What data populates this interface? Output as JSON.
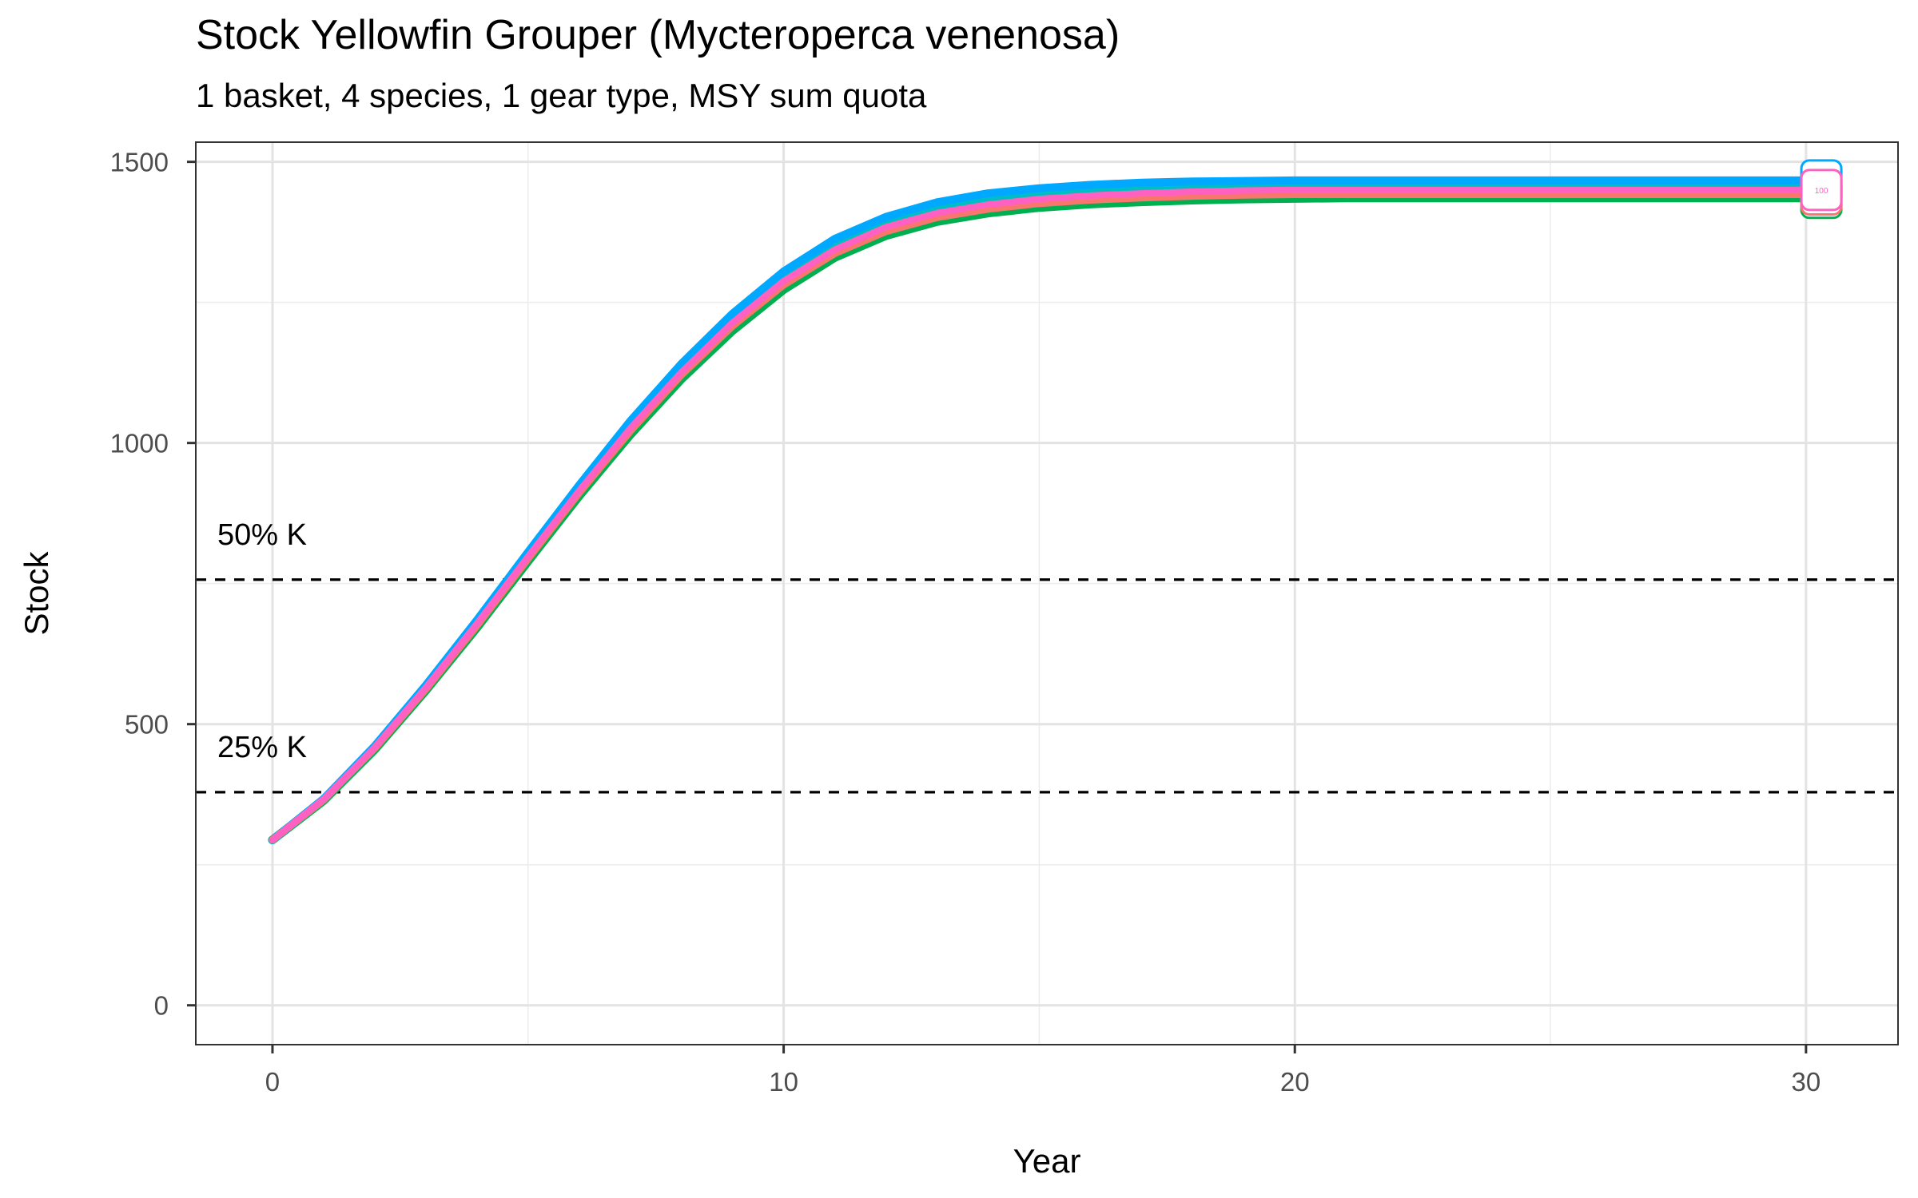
{
  "chart_data": {
    "type": "line",
    "title": "Stock Yellowfin Grouper (Mycteroperca venenosa)",
    "subtitle": "1 basket, 4 species, 1 gear type, MSY sum quota",
    "xlabel": "Year",
    "ylabel": "Stock",
    "xlim": [
      -1.5,
      31.8
    ],
    "ylim": [
      -70,
      1535
    ],
    "x_ticks": [
      0,
      10,
      20,
      30
    ],
    "x_tick_labels": [
      "0",
      "10",
      "20",
      "30"
    ],
    "y_ticks": [
      0,
      500,
      1000,
      1500
    ],
    "y_tick_labels": [
      "0",
      "500",
      "1000",
      "1500"
    ],
    "grid": true,
    "legend": "none",
    "end_label": "100",
    "reference_lines": [
      {
        "label": "50% K",
        "y": 757
      },
      {
        "label": "25% K",
        "y": 379
      }
    ],
    "x": [
      0,
      1,
      2,
      3,
      4,
      5,
      6,
      7,
      8,
      9,
      10,
      11,
      12,
      13,
      14,
      15,
      16,
      17,
      18,
      19,
      20,
      21,
      22,
      23,
      24,
      25,
      26,
      27,
      28,
      29,
      30
    ],
    "series": [
      {
        "color": "#00b050",
        "values": [
          294,
          364,
          455,
          560,
          672,
          790,
          906,
          1015,
          1114,
          1200,
          1273,
          1330,
          1369,
          1394,
          1409,
          1419,
          1425,
          1429,
          1432,
          1434,
          1435,
          1436,
          1436,
          1436,
          1436,
          1436,
          1436,
          1436,
          1436,
          1436,
          1436
        ]
      },
      {
        "color": "#00bfc4",
        "values": [
          294,
          366,
          459,
          566,
          681,
          801,
          919,
          1031,
          1132,
          1220,
          1293,
          1350,
          1390,
          1415,
          1430,
          1440,
          1446,
          1450,
          1453,
          1455,
          1456,
          1456,
          1456,
          1456,
          1456,
          1456,
          1456,
          1456,
          1456,
          1456,
          1456
        ]
      },
      {
        "color": "#00a9ff",
        "values": [
          294,
          367,
          461,
          569,
          685,
          806,
          925,
          1039,
          1141,
          1230,
          1305,
          1363,
          1402,
          1428,
          1444,
          1453,
          1459,
          1463,
          1465,
          1466,
          1467,
          1467,
          1467,
          1467,
          1467,
          1467,
          1467,
          1467,
          1467,
          1467,
          1467
        ]
      },
      {
        "color": "#c77cff",
        "values": [
          294,
          366,
          458,
          564,
          678,
          797,
          914,
          1025,
          1125,
          1213,
          1286,
          1342,
          1381,
          1406,
          1421,
          1431,
          1437,
          1441,
          1444,
          1446,
          1447,
          1447,
          1447,
          1447,
          1447,
          1447,
          1447,
          1447,
          1447,
          1447,
          1447
        ]
      },
      {
        "color": "#f8766d",
        "values": [
          294,
          365,
          457,
          562,
          675,
          794,
          911,
          1021,
          1121,
          1208,
          1281,
          1337,
          1376,
          1401,
          1416,
          1426,
          1432,
          1436,
          1439,
          1441,
          1442,
          1442,
          1442,
          1442,
          1442,
          1442,
          1442,
          1442,
          1442,
          1442,
          1442
        ]
      },
      {
        "color": "#ff61c3",
        "values": [
          294,
          366,
          458,
          564,
          678,
          798,
          915,
          1026,
          1126,
          1214,
          1288,
          1344,
          1384,
          1409,
          1424,
          1434,
          1440,
          1444,
          1447,
          1449,
          1450,
          1450,
          1450,
          1450,
          1450,
          1450,
          1450,
          1450,
          1450,
          1450,
          1450
        ]
      }
    ]
  }
}
